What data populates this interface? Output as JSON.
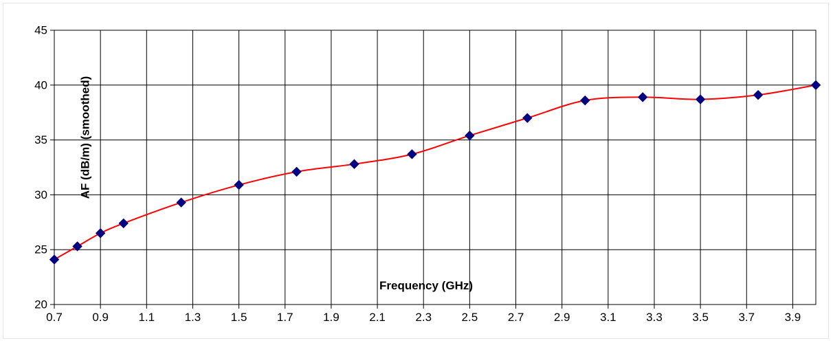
{
  "chart_data": {
    "type": "line",
    "title": "",
    "xlabel": "Frequency (GHz)",
    "ylabel": "AF (dB/m) (smoothed)",
    "xlim": [
      0.7,
      4.0
    ],
    "ylim": [
      20,
      45
    ],
    "x_ticks": [
      "0.7",
      "0.9",
      "1.1",
      "1.3",
      "1.5",
      "1.7",
      "1.9",
      "2.1",
      "2.3",
      "2.5",
      "2.7",
      "2.9",
      "3.1",
      "3.3",
      "3.5",
      "3.7",
      "3.9"
    ],
    "y_ticks": [
      "20",
      "25",
      "30",
      "35",
      "40",
      "45"
    ],
    "grid": true,
    "legend": "none",
    "colors": {
      "line": "#ff0000",
      "marker": "#000080",
      "grid": "#000000"
    },
    "series": [
      {
        "marker": "diamond",
        "x": [
          0.7,
          0.8,
          0.9,
          1.0,
          1.25,
          1.5,
          1.75,
          2.0,
          2.25,
          2.5,
          2.75,
          3.0,
          3.25,
          3.5,
          3.75,
          4.0
        ],
        "y": [
          24.1,
          25.3,
          26.5,
          27.4,
          29.3,
          30.9,
          32.1,
          32.8,
          33.7,
          35.4,
          37.0,
          38.6,
          38.9,
          38.7,
          39.1,
          40.0
        ]
      }
    ]
  }
}
